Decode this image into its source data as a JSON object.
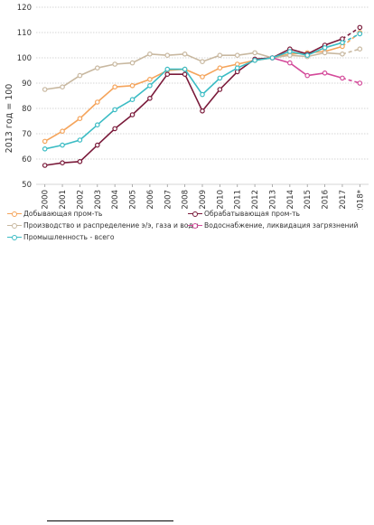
{
  "chart_data": {
    "type": "line",
    "title": "",
    "xlabel": "",
    "ylabel": "2013 год = 100",
    "ylim": [
      50,
      120
    ],
    "yticks": [
      50,
      60,
      70,
      80,
      90,
      100,
      110,
      120
    ],
    "grid": true,
    "legend_position": "bottom",
    "categories": [
      "2000",
      "2001",
      "2002",
      "2003",
      "2004",
      "2005",
      "2006",
      "2007",
      "2008",
      "2009",
      "2010",
      "2011",
      "2012",
      "2013",
      "2014",
      "2015",
      "2016",
      "2017",
      "2018*"
    ],
    "series": [
      {
        "name": "Добывающая пром-ть",
        "color": "#f5a45b",
        "values": [
          67,
          71,
          76,
          82.5,
          88.5,
          89,
          91.5,
          95,
          95.5,
          92.5,
          96,
          97.5,
          99,
          100,
          101.5,
          102,
          102.5,
          104.5,
          110
        ],
        "dashed_last": true
      },
      {
        "name": "Обрабатывающая пром-ть",
        "color": "#7a1a3a",
        "values": [
          57.5,
          58.5,
          59,
          65.5,
          72,
          77.5,
          84,
          93.5,
          93.5,
          79,
          87.5,
          94.5,
          99.5,
          100,
          103.5,
          101.5,
          105,
          107.5,
          112
        ],
        "dashed_last": true
      },
      {
        "name": "Производство и распределение э/э, газа и воды",
        "color": "#c8b8a0",
        "values": [
          87.5,
          88.5,
          93,
          96,
          97.5,
          98,
          101.5,
          101,
          101.5,
          98.5,
          101,
          101,
          102,
          100,
          101,
          100.5,
          102,
          101.5,
          103.5
        ],
        "dashed_last": true
      },
      {
        "name": "Водоснабжение, ликвидация загрязнений",
        "color": "#d44a9a",
        "values": [
          null,
          null,
          null,
          null,
          null,
          null,
          null,
          null,
          null,
          null,
          null,
          null,
          null,
          100,
          98,
          93,
          94,
          92,
          90
        ],
        "dashed_last": true
      },
      {
        "name": "Промышленность - всего",
        "color": "#3bbcc4",
        "values": [
          64,
          65.5,
          67.5,
          73.5,
          79.5,
          83.5,
          89,
          95.5,
          95.5,
          85.5,
          92,
          96,
          99,
          100,
          102.5,
          101,
          104,
          106,
          109.5
        ],
        "dashed_last": true
      }
    ]
  }
}
